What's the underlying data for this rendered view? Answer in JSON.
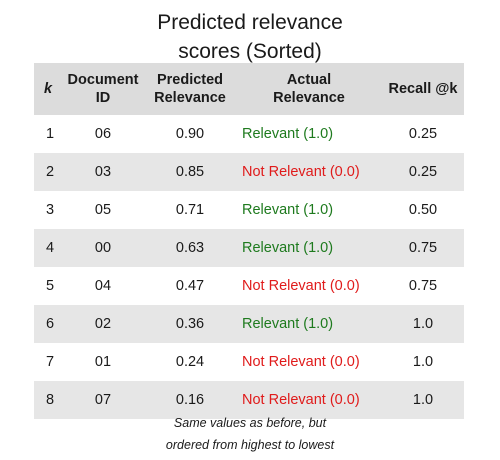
{
  "title": {
    "line1": "Predicted relevance",
    "line2": "scores (Sorted)"
  },
  "table": {
    "headers": {
      "k": "k",
      "document_id": [
        "Document",
        "ID"
      ],
      "predicted_relevance": [
        "Predicted",
        "Relevance"
      ],
      "actual_relevance": [
        "Actual",
        "Relevance"
      ],
      "recall": "Recall @k"
    },
    "rows": [
      {
        "k": "1",
        "document_id": "06",
        "predicted": "0.90",
        "actual": "Relevant (1.0)",
        "relevant": true,
        "recall": "0.25"
      },
      {
        "k": "2",
        "document_id": "03",
        "predicted": "0.85",
        "actual": "Not Relevant (0.0)",
        "relevant": false,
        "recall": "0.25"
      },
      {
        "k": "3",
        "document_id": "05",
        "predicted": "0.71",
        "actual": "Relevant (1.0)",
        "relevant": true,
        "recall": "0.50"
      },
      {
        "k": "4",
        "document_id": "00",
        "predicted": "0.63",
        "actual": "Relevant (1.0)",
        "relevant": true,
        "recall": "0.75"
      },
      {
        "k": "5",
        "document_id": "04",
        "predicted": "0.47",
        "actual": "Not Relevant (0.0)",
        "relevant": false,
        "recall": "0.75"
      },
      {
        "k": "6",
        "document_id": "02",
        "predicted": "0.36",
        "actual": "Relevant (1.0)",
        "relevant": true,
        "recall": "1.0"
      },
      {
        "k": "7",
        "document_id": "01",
        "predicted": "0.24",
        "actual": "Not Relevant (0.0)",
        "relevant": false,
        "recall": "1.0"
      },
      {
        "k": "8",
        "document_id": "07",
        "predicted": "0.16",
        "actual": "Not Relevant (0.0)",
        "relevant": false,
        "recall": "1.0"
      }
    ]
  },
  "caption": {
    "line1": "Same values as before, but",
    "line2": "ordered from highest to lowest"
  },
  "colors": {
    "relevant": "#1e7a1e",
    "not_relevant": "#e01b1b",
    "header_bg": "#dcdcdc",
    "stripe_bg": "#e6e6e6"
  }
}
